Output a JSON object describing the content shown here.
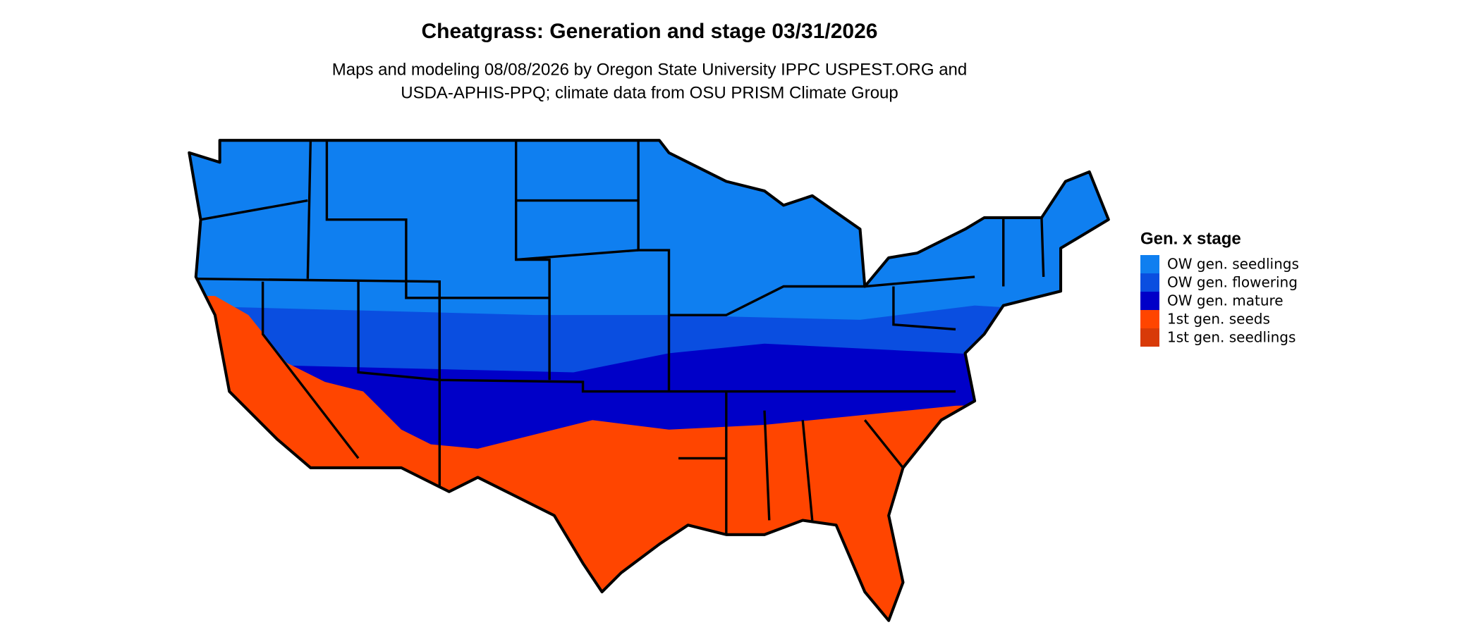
{
  "header": {
    "title": "Cheatgrass: Generation and stage 03/31/2026",
    "subtitle": [
      "Maps and modeling 08/08/2026 by Oregon State University IPPC USPEST.ORG and",
      "USDA-APHIS-PPQ; climate data from OSU PRISM Climate Group"
    ]
  },
  "legend": {
    "title": "Gen. x stage",
    "items": [
      {
        "label": "OW gen. seedlings",
        "color": "#0f7ff0"
      },
      {
        "label": "OW gen. flowering",
        "color": "#0a4ee0"
      },
      {
        "label": "OW gen. mature",
        "color": "#0000c8"
      },
      {
        "label": "1st gen. seeds",
        "color": "#ff4500"
      },
      {
        "label": "1st gen. seedlings",
        "color": "#d83a08"
      }
    ]
  }
}
